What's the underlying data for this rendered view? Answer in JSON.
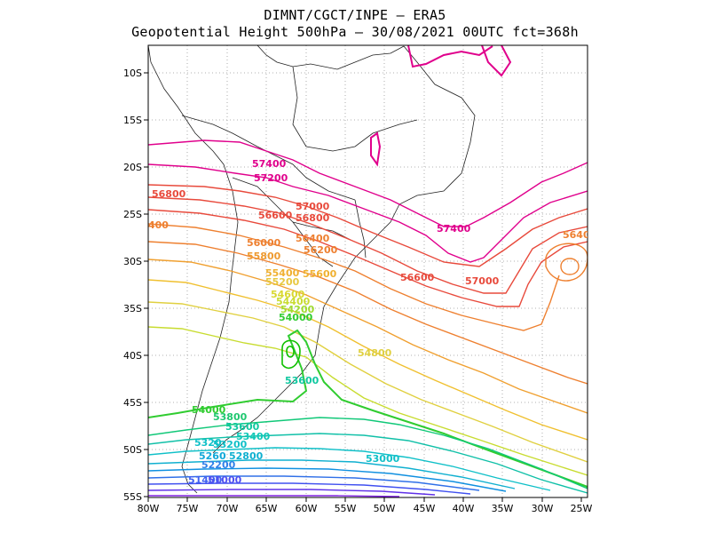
{
  "header": {
    "line1": "DIMNT/CGCT/INPE –  ERA5",
    "line2": "Geopotential Height 500hPa –  30/08/2021 00UTC fct=368h"
  },
  "axes": {
    "lat_labels": [
      "10S",
      "15S",
      "20S",
      "25S",
      "30S",
      "35S",
      "40S",
      "45S",
      "50S",
      "55S"
    ],
    "lon_labels": [
      "80W",
      "75W",
      "70W",
      "65W",
      "60W",
      "55W",
      "50W",
      "45W",
      "40W",
      "35W",
      "30W",
      "25W"
    ]
  },
  "contour_labels": [
    {
      "text": "57400",
      "color": "#e0008c"
    },
    {
      "text": "57200",
      "color": "#e0008c"
    },
    {
      "text": "57400",
      "color": "#e0008c"
    },
    {
      "text": "56800",
      "color": "#e84a3c"
    },
    {
      "text": "57000",
      "color": "#e84a3c"
    },
    {
      "text": "56800",
      "color": "#e84a3c"
    },
    {
      "text": "56600",
      "color": "#e84a3c"
    },
    {
      "text": "56600",
      "color": "#e84a3c"
    },
    {
      "text": "57000",
      "color": "#e84a3c"
    },
    {
      "text": "56400",
      "color": "#ee8030"
    },
    {
      "text": "56200",
      "color": "#ee8030"
    },
    {
      "text": "56000",
      "color": "#ee8030"
    },
    {
      "text": "55800",
      "color": "#ee9a30"
    },
    {
      "text": "5640",
      "color": "#ee8030"
    },
    {
      "text": "400",
      "color": "#ee8030"
    },
    {
      "text": "55400",
      "color": "#f0b030"
    },
    {
      "text": "55600",
      "color": "#f0b030"
    },
    {
      "text": "55200",
      "color": "#e8c840"
    },
    {
      "text": "54600",
      "color": "#d8d830"
    },
    {
      "text": "54400",
      "color": "#c8dc30"
    },
    {
      "text": "54200",
      "color": "#a0dc30"
    },
    {
      "text": "54000",
      "color": "#30cc30"
    },
    {
      "text": "54800",
      "color": "#e0d040"
    },
    {
      "text": "53600",
      "color": "#10c8a0"
    },
    {
      "text": "54000",
      "color": "#30cc30"
    },
    {
      "text": "53800",
      "color": "#20c870"
    },
    {
      "text": "53600",
      "color": "#10c8a0"
    },
    {
      "text": "53400",
      "color": "#10c8b8"
    },
    {
      "text": "5320",
      "color": "#10c0c8"
    },
    {
      "text": "53200",
      "color": "#10c0c8"
    },
    {
      "text": "53000",
      "color": "#10c0c8"
    },
    {
      "text": "5260",
      "color": "#10a8d8"
    },
    {
      "text": "52800",
      "color": "#10b0d0"
    },
    {
      "text": "52200",
      "color": "#3080e8"
    },
    {
      "text": "51400",
      "color": "#4060f0"
    },
    {
      "text": "51000",
      "color": "#5050f0"
    }
  ],
  "palette": {
    "magenta": "#e0008c",
    "red": "#e84a3c",
    "orange": "#ee8030",
    "yellow": "#e0d040",
    "green": "#10c000",
    "cyan": "#10c0c8",
    "blue": "#3070e8",
    "purple": "#8020e0"
  }
}
